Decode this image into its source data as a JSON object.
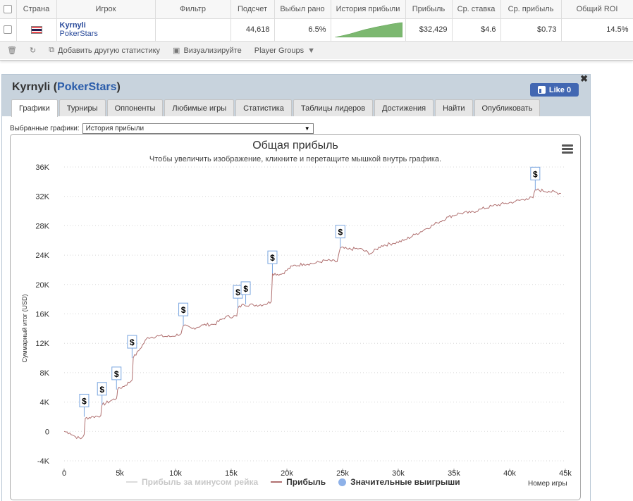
{
  "table": {
    "headers": [
      "Страна",
      "Игрок",
      "Фильтр",
      "Подсчет",
      "Выбыл рано",
      "История прибыли",
      "Прибыль",
      "Ср. ставка",
      "Ср. прибыль",
      "Общий ROI"
    ],
    "row": {
      "player_name": "Kyrnyli",
      "site": "PokerStars",
      "filter": "",
      "count": "44,618",
      "early_out": "6.5%",
      "profit": "$32,429",
      "avg_stake": "$4.6",
      "avg_profit": "$0.73",
      "roi": "14.5%"
    },
    "sparkline": [
      0,
      5,
      9,
      14,
      19,
      24,
      30,
      36,
      42,
      48,
      54,
      58,
      63,
      68,
      72,
      76,
      80,
      84,
      88,
      92,
      95,
      98,
      100
    ]
  },
  "toolbar": {
    "add_stats": "Добавить другую статистику",
    "visualize": "Визуализируйте",
    "player_groups": "Player Groups"
  },
  "panel": {
    "player": "Kyrnyli",
    "site": "PokerStars",
    "like_label": "Like 0",
    "tabs": [
      "Графики",
      "Турниры",
      "Оппоненты",
      "Любимые игры",
      "Статистика",
      "Таблицы лидеров",
      "Достижения",
      "Найти",
      "Опубликовать"
    ],
    "selected_graph_label": "Выбранные графики:",
    "selected_graph_value": "История прибыли"
  },
  "chart_data": {
    "type": "line",
    "title": "Общая прибыль",
    "subtitle": "Чтобы увеличить изображение, кликните и перетащите мышкой внутрь графика.",
    "xlabel": "Номер игры",
    "ylabel": "Суммарный итог (USD)",
    "xlim": [
      0,
      45000
    ],
    "ylim": [
      -4000,
      36000
    ],
    "x_ticks": [
      "0",
      "5k",
      "10k",
      "15k",
      "20k",
      "25k",
      "30k",
      "35k",
      "40k",
      "45k"
    ],
    "y_ticks": [
      "-4K",
      "0",
      "4K",
      "8K",
      "12K",
      "16K",
      "20K",
      "24K",
      "28K",
      "32K",
      "36K"
    ],
    "legend": [
      "Прибыль за минусом рейка",
      "Прибыль",
      "Значительные выигрыши"
    ],
    "series": [
      {
        "name": "Прибыль",
        "color": "#b07070",
        "points": [
          [
            0,
            0
          ],
          [
            500,
            -200
          ],
          [
            1000,
            -700
          ],
          [
            1500,
            -1000
          ],
          [
            1800,
            -400
          ],
          [
            1900,
            1800
          ],
          [
            2600,
            2000
          ],
          [
            3300,
            2200
          ],
          [
            3400,
            3600
          ],
          [
            4200,
            4200
          ],
          [
            4700,
            4500
          ],
          [
            4800,
            5700
          ],
          [
            5500,
            6300
          ],
          [
            6100,
            7000
          ],
          [
            6200,
            10000
          ],
          [
            6700,
            11000
          ],
          [
            7500,
            12800
          ],
          [
            8500,
            13000
          ],
          [
            9500,
            12900
          ],
          [
            10500,
            13300
          ],
          [
            10700,
            14400
          ],
          [
            11500,
            14000
          ],
          [
            12500,
            14500
          ],
          [
            13500,
            14600
          ],
          [
            14500,
            15600
          ],
          [
            15500,
            15700
          ],
          [
            15600,
            16800
          ],
          [
            16100,
            17300
          ],
          [
            17000,
            17200
          ],
          [
            18000,
            17300
          ],
          [
            18600,
            17700
          ],
          [
            18700,
            21500
          ],
          [
            19500,
            21400
          ],
          [
            20500,
            22500
          ],
          [
            21500,
            22800
          ],
          [
            22500,
            22900
          ],
          [
            23500,
            23300
          ],
          [
            24500,
            23100
          ],
          [
            24800,
            25000
          ],
          [
            25500,
            24800
          ],
          [
            26500,
            24900
          ],
          [
            27500,
            24200
          ],
          [
            28500,
            25300
          ],
          [
            29500,
            25600
          ],
          [
            30500,
            26000
          ],
          [
            31500,
            26800
          ],
          [
            32500,
            27600
          ],
          [
            33500,
            28400
          ],
          [
            34500,
            29200
          ],
          [
            35500,
            29700
          ],
          [
            36500,
            29800
          ],
          [
            37500,
            30300
          ],
          [
            38500,
            30700
          ],
          [
            39500,
            31000
          ],
          [
            40500,
            31300
          ],
          [
            41500,
            31700
          ],
          [
            42100,
            31800
          ],
          [
            42300,
            32900
          ],
          [
            43500,
            32700
          ],
          [
            44600,
            32400
          ]
        ]
      }
    ],
    "big_wins": [
      [
        1800,
        2000
      ],
      [
        3400,
        3600
      ],
      [
        4700,
        5700
      ],
      [
        6100,
        10000
      ],
      [
        10700,
        14400
      ],
      [
        15600,
        16800
      ],
      [
        16300,
        17300
      ],
      [
        18700,
        21500
      ],
      [
        24800,
        25000
      ],
      [
        42300,
        32900
      ]
    ],
    "big_win_marker": "$",
    "grid": true
  }
}
